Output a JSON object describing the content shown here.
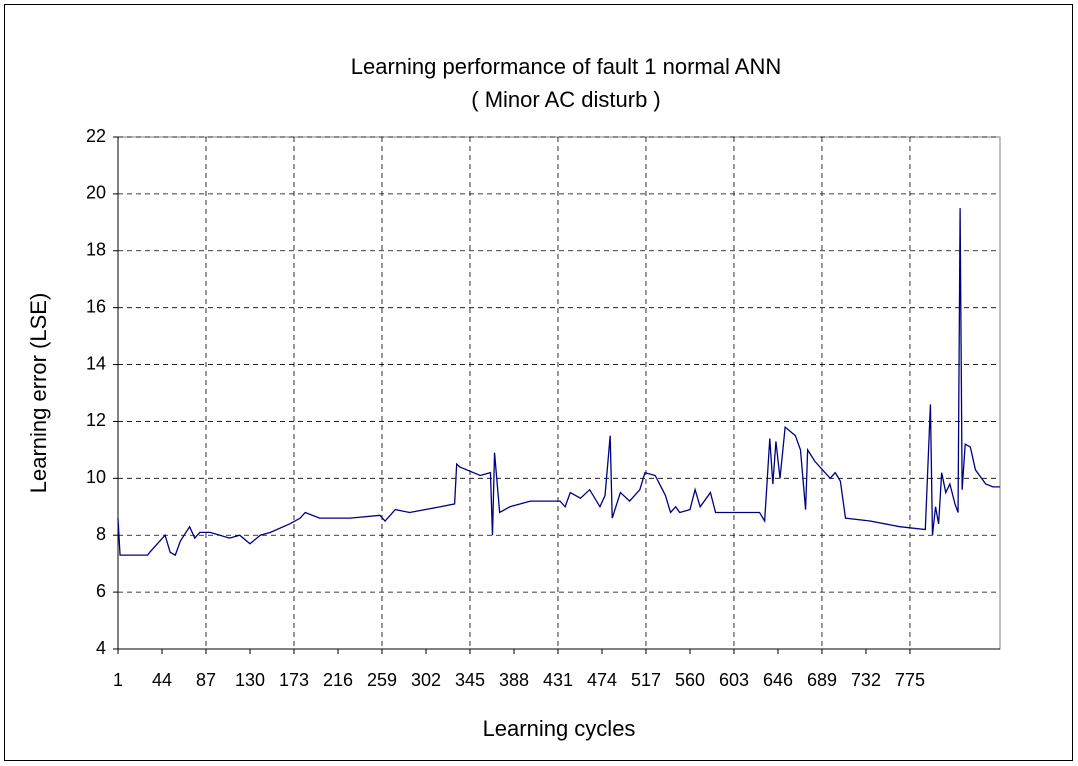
{
  "chart_data": {
    "type": "line",
    "title": "Learning performance of fault 1 normal ANN",
    "subtitle": "( Minor AC disturb )",
    "x_label": "Learning cycles",
    "y_label": "Learning error (LSE)",
    "xlim": [
      1,
      863
    ],
    "ylim": [
      4,
      22
    ],
    "xticks": [
      1,
      44,
      87,
      130,
      173,
      216,
      259,
      302,
      345,
      388,
      431,
      474,
      517,
      560,
      603,
      646,
      689,
      732,
      775
    ],
    "x_gridlines": [
      87,
      173,
      259,
      345,
      431,
      517,
      603,
      689,
      775
    ],
    "yticks": [
      4,
      6,
      8,
      10,
      12,
      14,
      16,
      18,
      20,
      22
    ],
    "grid": true,
    "series": [
      {
        "name": "Learning error",
        "color": "#000080",
        "x": [
          1,
          3,
          30,
          32,
          42,
          47,
          52,
          57,
          62,
          71,
          76,
          81,
          91,
          110,
          120,
          130,
          140,
          150,
          169,
          179,
          184,
          198,
          228,
          257,
          262,
          272,
          286,
          316,
          330,
          332,
          335,
          355,
          365,
          367,
          369,
          374,
          384,
          404,
          433,
          438,
          443,
          453,
          462,
          472,
          477,
          482,
          484,
          492,
          501,
          511,
          516,
          526,
          536,
          541,
          546,
          550,
          560,
          565,
          570,
          580,
          585,
          589,
          628,
          633,
          638,
          641,
          644,
          648,
          653,
          663,
          668,
          673,
          675,
          682,
          697,
          702,
          707,
          712,
          736,
          765,
          790,
          795,
          797,
          800,
          803,
          806,
          810,
          814,
          819,
          822,
          824,
          826,
          829,
          834,
          839,
          849,
          856,
          863
        ],
        "values": [
          8.6,
          7.3,
          7.3,
          7.4,
          7.8,
          8.0,
          7.4,
          7.3,
          7.8,
          8.3,
          7.9,
          8.1,
          8.1,
          7.9,
          8.0,
          7.7,
          8.0,
          8.1,
          8.4,
          8.6,
          8.8,
          8.6,
          8.6,
          8.7,
          8.5,
          8.9,
          8.8,
          9.0,
          9.1,
          10.5,
          10.4,
          10.1,
          10.2,
          8.0,
          10.9,
          8.8,
          9.0,
          9.2,
          9.2,
          9.0,
          9.5,
          9.3,
          9.6,
          9.0,
          9.4,
          11.5,
          8.6,
          9.5,
          9.2,
          9.6,
          10.2,
          10.1,
          9.4,
          8.8,
          9.0,
          8.8,
          8.9,
          9.6,
          9.0,
          9.5,
          8.8,
          8.8,
          8.8,
          8.5,
          11.4,
          9.8,
          11.3,
          10.0,
          11.8,
          11.5,
          11.0,
          8.9,
          11.0,
          10.6,
          10.0,
          10.2,
          9.9,
          8.6,
          8.5,
          8.3,
          8.2,
          12.6,
          8.0,
          9.0,
          8.4,
          10.2,
          9.5,
          9.8,
          9.1,
          8.8,
          19.5,
          9.6,
          11.2,
          11.1,
          10.3,
          9.8,
          9.7,
          9.7
        ]
      }
    ]
  }
}
